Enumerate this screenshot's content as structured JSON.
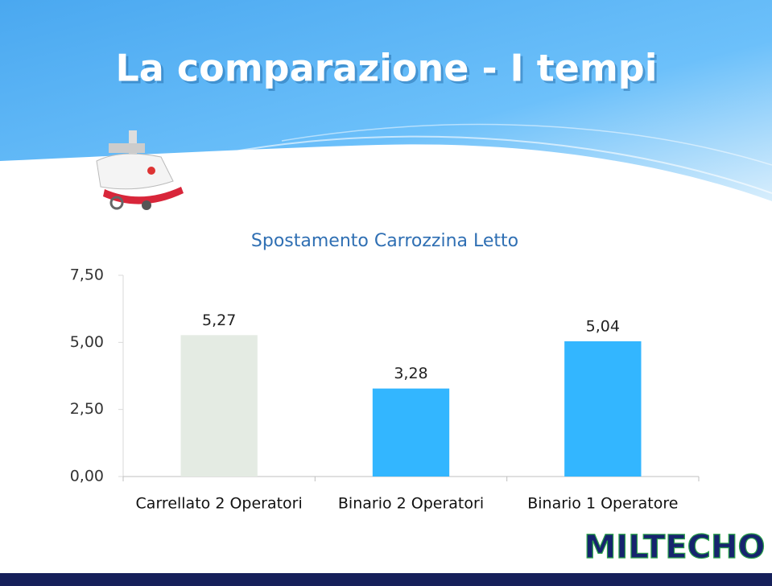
{
  "header": {
    "title": "La comparazione - I tempi"
  },
  "logo": "MILTECHO",
  "chart_data": {
    "type": "bar",
    "title": "Spostamento Carrozzina Letto",
    "categories": [
      "Carrellato 2 Operatori",
      "Binario 2 Operatori",
      "Binario 1 Operatore"
    ],
    "values": [
      5.27,
      3.28,
      5.04
    ],
    "value_labels": [
      "5,27",
      "3,28",
      "5,04"
    ],
    "colors": [
      "#e4ebe3",
      "#33b6ff",
      "#33b6ff"
    ],
    "ylim": [
      0,
      7.5
    ],
    "yticks": [
      {
        "value": 0,
        "label": "0,00"
      },
      {
        "value": 2.5,
        "label": "2,50"
      },
      {
        "value": 5,
        "label": "5,00"
      },
      {
        "value": 7.5,
        "label": "7,50"
      }
    ],
    "grid": false
  }
}
